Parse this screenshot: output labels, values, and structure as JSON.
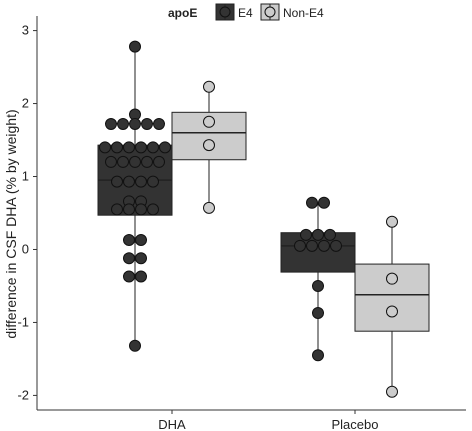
{
  "chart_data": {
    "type": "box",
    "xlabel": "",
    "ylabel": "difference in CSF DHA (% by weight)",
    "ylim": [
      -2.2,
      3.2
    ],
    "yticks": [
      -2,
      -1,
      0,
      1,
      2,
      3
    ],
    "categories": [
      "DHA",
      "Placebo"
    ],
    "legend": {
      "title": "apoE",
      "position": "top"
    },
    "series": [
      {
        "name": "E4",
        "fill": "#333333",
        "boxes": [
          {
            "category": "DHA",
            "q1": 0.47,
            "median": 0.95,
            "q3": 1.43,
            "whisker_low": -1.32,
            "whisker_high": 2.78,
            "points": [
              2.78,
              1.85,
              1.72,
              1.72,
              1.72,
              1.72,
              1.72,
              1.4,
              1.4,
              1.4,
              1.4,
              1.4,
              1.4,
              1.2,
              1.2,
              1.2,
              1.2,
              1.2,
              0.93,
              0.93,
              0.93,
              0.93,
              0.66,
              0.66,
              0.55,
              0.55,
              0.55,
              0.55,
              0.13,
              0.13,
              -0.12,
              -0.12,
              -0.37,
              -0.37,
              -1.32
            ]
          },
          {
            "category": "Placebo",
            "q1": -0.31,
            "median": 0.05,
            "q3": 0.23,
            "whisker_low": -1.45,
            "whisker_high": 0.64,
            "points": [
              0.64,
              0.64,
              0.2,
              0.2,
              0.2,
              0.05,
              0.05,
              0.05,
              0.05,
              -0.5,
              -0.87,
              -1.45
            ]
          }
        ]
      },
      {
        "name": "Non-E4",
        "fill": "#cccccc",
        "boxes": [
          {
            "category": "DHA",
            "q1": 1.23,
            "median": 1.6,
            "q3": 1.88,
            "whisker_low": 0.57,
            "whisker_high": 2.23,
            "points": [
              2.23,
              1.75,
              1.43,
              0.57
            ]
          },
          {
            "category": "Placebo",
            "q1": -1.12,
            "median": -0.62,
            "q3": -0.2,
            "whisker_low": -1.95,
            "whisker_high": 0.38,
            "points": [
              0.38,
              -0.4,
              -0.85,
              -1.95
            ]
          }
        ]
      }
    ]
  }
}
